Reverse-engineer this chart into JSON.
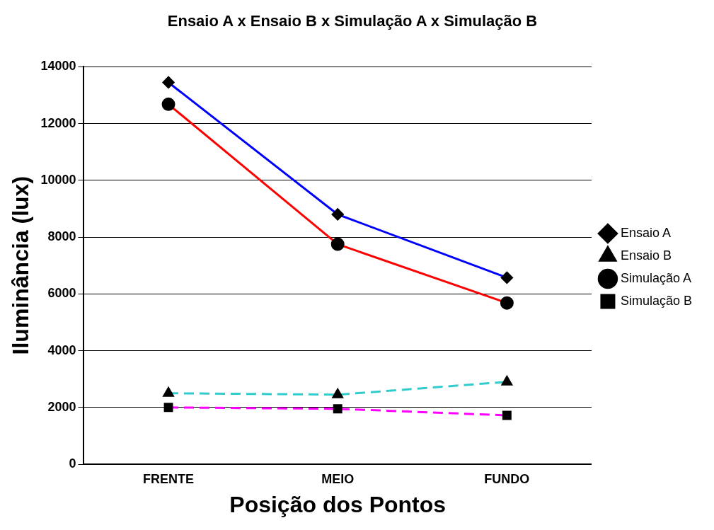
{
  "chart_data": {
    "type": "line",
    "title": "Ensaio A x Ensaio B x Simulação A x Simulação B",
    "xlabel": "Posição dos Pontos",
    "ylabel": "Iluminância (lux)",
    "categories": [
      "FRENTE",
      "MEIO",
      "FUNDO"
    ],
    "series": [
      {
        "name": "Ensaio A",
        "color": "#0000ff",
        "values": [
          13450,
          8800,
          6570
        ],
        "marker": "diamond",
        "line_style": "solid"
      },
      {
        "name": "Ensaio B",
        "color": "#33cccc",
        "values": [
          2500,
          2450,
          2900
        ],
        "marker": "triangle",
        "line_style": "dashed"
      },
      {
        "name": "Simulação A",
        "color": "#ff0000",
        "values": [
          12680,
          7750,
          5680
        ],
        "marker": "circle",
        "line_style": "solid"
      },
      {
        "name": "Simulação B",
        "color": "#ff00ff",
        "values": [
          2000,
          1950,
          1720
        ],
        "marker": "square",
        "line_style": "dashed"
      }
    ],
    "ylim": [
      0,
      14000
    ],
    "yticks": [
      0,
      2000,
      4000,
      6000,
      8000,
      10000,
      12000,
      14000
    ],
    "grid": "y",
    "legend": "right"
  }
}
